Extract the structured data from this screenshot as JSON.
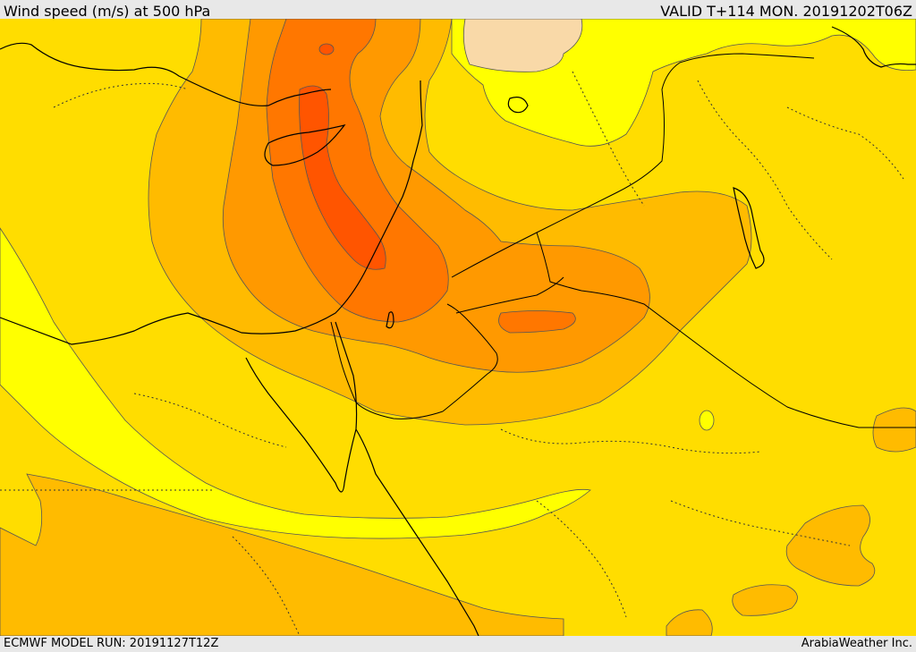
{
  "header": {
    "title": "Wind speed (m/s) at 500 hPa",
    "valid": "VALID T+114 MON. 20191202T06Z"
  },
  "footer": {
    "model_run": "ECMWF MODEL RUN: 20191127T12Z",
    "brand": "ArabiaWeather Inc."
  },
  "colors": {
    "band_lightest": "#f9d9a8",
    "band_1": "#ffff00",
    "band_2": "#ffdd00",
    "band_3": "#ffbb00",
    "band_4": "#ff9900",
    "band_5": "#ff7700",
    "band_6": "#ff5500",
    "contour": "#555555",
    "border": "#000000"
  }
}
